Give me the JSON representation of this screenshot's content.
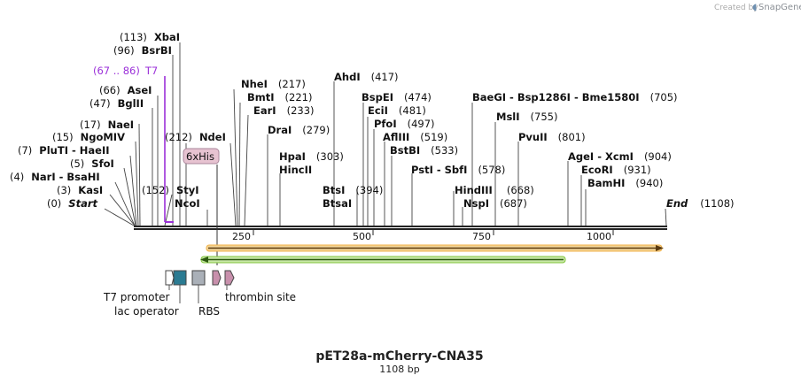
{
  "credit": {
    "prefix": "Created by",
    "brand": "SnapGene"
  },
  "map": {
    "title": "pET28a-mCherry-CNA35",
    "length_label": "1108 bp",
    "length": 1108
  },
  "axis": {
    "ticks": [
      "250",
      "500",
      "750",
      "1000"
    ]
  },
  "sites_left": [
    {
      "name": "XbaI",
      "pos": "(113)"
    },
    {
      "name": "BsrBI",
      "pos": "(96)"
    },
    {
      "name": "AseI",
      "pos": "(66)"
    },
    {
      "name": "BglII",
      "pos": "(47)"
    },
    {
      "name": "NaeI",
      "pos": "(17)"
    },
    {
      "name": "NgoMIV",
      "pos": "(15)"
    },
    {
      "name": "PluTI  -  HaeII",
      "pos": "(7)"
    },
    {
      "name": "SfoI",
      "pos": "(5)"
    },
    {
      "name": "NarI  -  BsaHI",
      "pos": "(4)"
    },
    {
      "name": "KasI",
      "pos": "(3)"
    },
    {
      "name": "Start",
      "pos": "(0)"
    },
    {
      "name": "NdeI",
      "pos": "(212)"
    },
    {
      "name": "StyI",
      "pos": "(152)"
    },
    {
      "name": "NcoI",
      "pos": ""
    }
  ],
  "sites_right": [
    {
      "name": "NheI",
      "pos": "(217)"
    },
    {
      "name": "BmtI",
      "pos": "(221)"
    },
    {
      "name": "EarI",
      "pos": "(233)"
    },
    {
      "name": "DraI",
      "pos": "(279)"
    },
    {
      "name": "HpaI",
      "pos": "(303)"
    },
    {
      "name": "HincII",
      "pos": ""
    },
    {
      "name": "AhdI",
      "pos": "(417)"
    },
    {
      "name": "BspEI",
      "pos": "(474)"
    },
    {
      "name": "EciI",
      "pos": "(481)"
    },
    {
      "name": "PfoI",
      "pos": "(497)"
    },
    {
      "name": "AflIII",
      "pos": "(519)"
    },
    {
      "name": "BstBI",
      "pos": "(533)"
    },
    {
      "name": "BtsI",
      "pos": "(394)"
    },
    {
      "name": "BtsaI",
      "pos": ""
    },
    {
      "name": "PstI  -  SbfI",
      "pos": "(578)"
    },
    {
      "name": "HindIII",
      "pos": "(668)"
    },
    {
      "name": "NspI",
      "pos": "(687)"
    },
    {
      "name": "BaeGI  -  Bsp1286I  -  Bme1580I",
      "pos": "(705)"
    },
    {
      "name": "MslI",
      "pos": "(755)"
    },
    {
      "name": "PvuII",
      "pos": "(801)"
    },
    {
      "name": "AgeI  -  XcmI",
      "pos": "(904)"
    },
    {
      "name": "EcoRI",
      "pos": "(931)"
    },
    {
      "name": "BamHI",
      "pos": "(940)"
    },
    {
      "name": "End",
      "pos": "(1108)"
    }
  ],
  "primer": {
    "range": "(67 .. 86)",
    "name": "T7"
  },
  "features": {
    "his_tag": "6xHis",
    "t7_promoter": "T7 promoter",
    "lac_operator": "lac operator",
    "rbs": "RBS",
    "thrombin": "thrombin site"
  },
  "colors": {
    "backbone": "#222222",
    "primer": "#9b30d9",
    "orange_arrow": "#f0b24a",
    "green_arrow": "#7fc33a",
    "his_fill": "#e7c3d1",
    "lac_fill": "#2b7b92",
    "rbs_fill": "#aab0b8",
    "thrombin_fill": "#c890ac"
  }
}
